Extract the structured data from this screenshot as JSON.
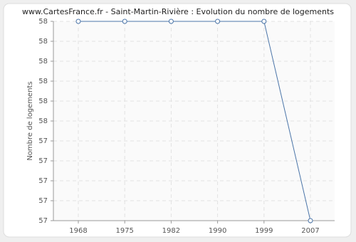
{
  "chart_data": {
    "type": "line",
    "title": "www.CartesFrance.fr - Saint-Martin-Rivière : Evolution du nombre de logements",
    "y_label": "Nombre de logements",
    "categories": [
      "1968",
      "1975",
      "1982",
      "1990",
      "1999",
      "2007"
    ],
    "series": [
      {
        "name": "Nombre de logements",
        "color": "#4a74a8",
        "values": [
          58,
          58,
          58,
          58,
          58,
          57
        ]
      }
    ],
    "ylim": [
      57,
      58
    ],
    "yticks": [
      {
        "value": 57,
        "label": "57"
      },
      {
        "value": 57.1,
        "label": "57"
      },
      {
        "value": 57.2,
        "label": "57"
      },
      {
        "value": 57.3,
        "label": "57"
      },
      {
        "value": 57.4,
        "label": "57"
      },
      {
        "value": 57.5,
        "label": "58"
      },
      {
        "value": 57.6,
        "label": "58"
      },
      {
        "value": 57.7,
        "label": "58"
      },
      {
        "value": 57.8,
        "label": "58"
      },
      {
        "value": 57.9,
        "label": "58"
      },
      58
    ],
    "grid": true
  }
}
